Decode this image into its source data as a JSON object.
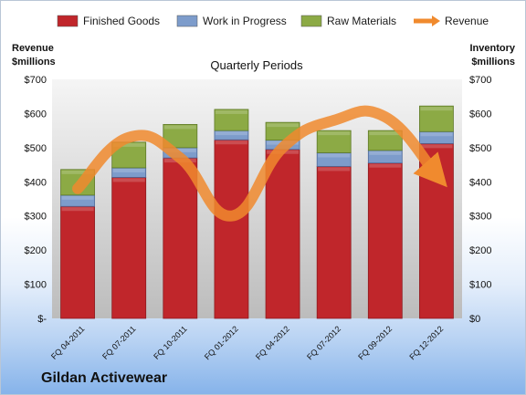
{
  "chart_data": {
    "type": "bar",
    "stacked": true,
    "title": "",
    "subtitle": "Quarterly Periods",
    "footer_title": "Gildan Activewear",
    "categories": [
      "FQ 04-2011",
      "FQ 07-2011",
      "FQ 10-2011",
      "FQ 01-2012",
      "FQ 04-2012",
      "FQ 07-2012",
      "FQ 09-2012",
      "FQ 12-2012"
    ],
    "series": [
      {
        "name": "Finished Goods",
        "color": "#c0262b",
        "values": [
          328,
          413,
          470,
          523,
          495,
          445,
          455,
          512
        ]
      },
      {
        "name": "Work in Progress",
        "color": "#7d9ccb",
        "values": [
          33,
          28,
          30,
          27,
          27,
          40,
          37,
          35
        ]
      },
      {
        "name": "Raw Materials",
        "color": "#8caa45",
        "values": [
          75,
          75,
          68,
          62,
          52,
          65,
          58,
          75
        ]
      }
    ],
    "line_series": {
      "name": "Revenue",
      "color": "#f08a2e",
      "values": [
        380,
        530,
        470,
        300,
        500,
        580,
        590,
        420
      ]
    },
    "y_left_label_line1": "Revenue",
    "y_left_label_line2": "$millions",
    "y_right_label_line1": "Inventory",
    "y_right_label_line2": "$millions",
    "ylim": [
      0,
      700
    ],
    "y_ticks_left": [
      "$-",
      "$100",
      "$200",
      "$300",
      "$400",
      "$500",
      "$600",
      "$700"
    ],
    "y_ticks_right": [
      "$0",
      "$100",
      "$200",
      "$300",
      "$400",
      "$500",
      "$600",
      "$700"
    ],
    "legend_position": "top",
    "grid": false
  }
}
